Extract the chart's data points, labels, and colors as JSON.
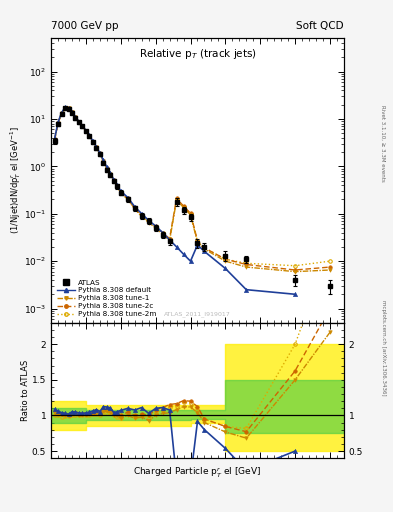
{
  "title_left": "7000 GeV pp",
  "title_right": "Soft QCD",
  "plot_title": "Relative p$_{T}$ (track jets)",
  "ylabel_main": "(1/Njet)dN/dp$^{r}_{T}$ el [GeV$^{-1}$]",
  "ylabel_ratio": "Ratio to ATLAS",
  "xlabel": "Charged Particle p$^{r}_{T}$ el [GeV]",
  "right_label_top": "Rivet 3.1.10, ≥ 3.3M events",
  "right_label_bot": "mcplots.cern.ch [arXiv:1306.3436]",
  "watermark": "ATLAS_2011_I919017",
  "atlas_x": [
    0.05,
    0.1,
    0.15,
    0.2,
    0.25,
    0.3,
    0.35,
    0.4,
    0.45,
    0.5,
    0.55,
    0.6,
    0.65,
    0.7,
    0.75,
    0.8,
    0.85,
    0.9,
    0.95,
    1.0,
    1.1,
    1.2,
    1.3,
    1.4,
    1.5,
    1.6,
    1.7,
    1.8,
    1.9,
    2.0,
    2.1,
    2.2,
    2.5,
    2.8,
    3.5,
    4.0
  ],
  "atlas_y": [
    3.5,
    8.0,
    13.0,
    17.0,
    16.5,
    13.5,
    10.5,
    8.5,
    7.0,
    5.5,
    4.3,
    3.2,
    2.4,
    1.8,
    1.2,
    0.85,
    0.65,
    0.5,
    0.38,
    0.28,
    0.2,
    0.13,
    0.09,
    0.07,
    0.05,
    0.036,
    0.026,
    0.18,
    0.12,
    0.085,
    0.024,
    0.02,
    0.013,
    0.011,
    0.004,
    0.003
  ],
  "atlas_yerr": [
    0.5,
    0.8,
    1.0,
    1.2,
    1.1,
    1.0,
    0.8,
    0.6,
    0.5,
    0.4,
    0.3,
    0.25,
    0.2,
    0.15,
    0.1,
    0.08,
    0.06,
    0.05,
    0.04,
    0.03,
    0.025,
    0.015,
    0.012,
    0.01,
    0.007,
    0.005,
    0.004,
    0.035,
    0.022,
    0.016,
    0.005,
    0.004,
    0.003,
    0.002,
    0.001,
    0.001
  ],
  "pythia_default_x": [
    0.05,
    0.1,
    0.15,
    0.2,
    0.25,
    0.3,
    0.35,
    0.4,
    0.45,
    0.5,
    0.55,
    0.6,
    0.65,
    0.7,
    0.75,
    0.8,
    0.85,
    0.9,
    0.95,
    1.0,
    1.1,
    1.2,
    1.3,
    1.4,
    1.5,
    1.6,
    1.7,
    1.8,
    1.9,
    2.0,
    2.1,
    2.2,
    2.5,
    2.8,
    3.5
  ],
  "pythia_default_y": [
    3.8,
    8.5,
    13.5,
    17.5,
    16.8,
    14.2,
    11.0,
    8.8,
    7.2,
    5.7,
    4.5,
    3.4,
    2.6,
    1.9,
    1.35,
    0.95,
    0.72,
    0.52,
    0.4,
    0.3,
    0.22,
    0.14,
    0.1,
    0.072,
    0.055,
    0.04,
    0.028,
    0.02,
    0.014,
    0.01,
    0.022,
    0.016,
    0.007,
    0.0025,
    0.002
  ],
  "tune1_x": [
    0.05,
    0.1,
    0.15,
    0.2,
    0.25,
    0.3,
    0.35,
    0.4,
    0.45,
    0.5,
    0.55,
    0.6,
    0.65,
    0.7,
    0.75,
    0.8,
    0.85,
    0.9,
    0.95,
    1.0,
    1.1,
    1.2,
    1.3,
    1.4,
    1.5,
    1.6,
    1.7,
    1.8,
    1.9,
    2.0,
    2.1,
    2.2,
    2.5,
    2.8,
    3.5,
    4.0
  ],
  "tune1_y": [
    3.6,
    8.2,
    13.2,
    17.2,
    16.6,
    13.8,
    10.8,
    8.6,
    7.1,
    5.6,
    4.4,
    3.3,
    2.5,
    1.85,
    1.28,
    0.9,
    0.68,
    0.5,
    0.38,
    0.27,
    0.2,
    0.125,
    0.088,
    0.065,
    0.05,
    0.037,
    0.027,
    0.195,
    0.135,
    0.095,
    0.025,
    0.018,
    0.01,
    0.0075,
    0.006,
    0.0065
  ],
  "tune2c_x": [
    0.05,
    0.1,
    0.15,
    0.2,
    0.25,
    0.3,
    0.35,
    0.4,
    0.45,
    0.5,
    0.55,
    0.6,
    0.65,
    0.7,
    0.75,
    0.8,
    0.85,
    0.9,
    0.95,
    1.0,
    1.1,
    1.2,
    1.3,
    1.4,
    1.5,
    1.6,
    1.7,
    1.8,
    1.9,
    2.0,
    2.1,
    2.2,
    2.5,
    2.8,
    3.5,
    4.0
  ],
  "tune2c_y": [
    3.7,
    8.3,
    13.3,
    17.3,
    16.7,
    13.9,
    10.9,
    8.7,
    7.15,
    5.65,
    4.42,
    3.32,
    2.52,
    1.87,
    1.3,
    0.92,
    0.7,
    0.52,
    0.39,
    0.28,
    0.21,
    0.13,
    0.092,
    0.07,
    0.054,
    0.04,
    0.03,
    0.21,
    0.145,
    0.102,
    0.027,
    0.019,
    0.011,
    0.0085,
    0.0065,
    0.0075
  ],
  "tune2m_x": [
    0.05,
    0.1,
    0.15,
    0.2,
    0.25,
    0.3,
    0.35,
    0.4,
    0.45,
    0.5,
    0.55,
    0.6,
    0.65,
    0.7,
    0.75,
    0.8,
    0.85,
    0.9,
    0.95,
    1.0,
    1.1,
    1.2,
    1.3,
    1.4,
    1.5,
    1.6,
    1.7,
    1.8,
    1.9,
    2.0,
    2.1,
    2.2,
    2.5,
    2.8,
    3.5,
    4.0
  ],
  "tune2m_y": [
    3.5,
    8.0,
    12.8,
    16.9,
    16.3,
    13.6,
    10.6,
    8.5,
    7.0,
    5.55,
    4.35,
    3.25,
    2.45,
    1.82,
    1.26,
    0.88,
    0.67,
    0.5,
    0.37,
    0.27,
    0.205,
    0.128,
    0.09,
    0.068,
    0.052,
    0.039,
    0.029,
    0.205,
    0.142,
    0.1,
    0.026,
    0.019,
    0.011,
    0.009,
    0.008,
    0.01
  ],
  "xlim": [
    0.0,
    4.2
  ],
  "ylim_main": [
    0.0005,
    500
  ],
  "ylim_ratio": [
    0.4,
    2.3
  ],
  "color_atlas": "#000000",
  "color_default": "#1f3f99",
  "color_tune1": "#cc8800",
  "color_tune2c": "#cc6600",
  "color_tune2m": "#ddaa00",
  "bg_color": "#f5f5f5",
  "band_green": "#44cc44",
  "band_yellow": "#ffee00",
  "band_x_edges": [
    0.0,
    0.5,
    1.0,
    1.5,
    2.0,
    2.5,
    3.0,
    3.5,
    4.2
  ],
  "band_yel_lo": [
    0.8,
    0.85,
    0.85,
    0.85,
    0.9,
    0.5,
    0.5,
    0.5,
    0.5
  ],
  "band_yel_hi": [
    1.2,
    1.15,
    1.15,
    1.15,
    1.15,
    2.0,
    2.0,
    2.0,
    2.0
  ],
  "band_grn_lo": [
    0.9,
    0.93,
    0.93,
    0.93,
    0.95,
    0.75,
    0.75,
    0.75,
    0.75
  ],
  "band_grn_hi": [
    1.1,
    1.07,
    1.07,
    1.07,
    1.08,
    1.5,
    1.5,
    1.5,
    1.5
  ]
}
